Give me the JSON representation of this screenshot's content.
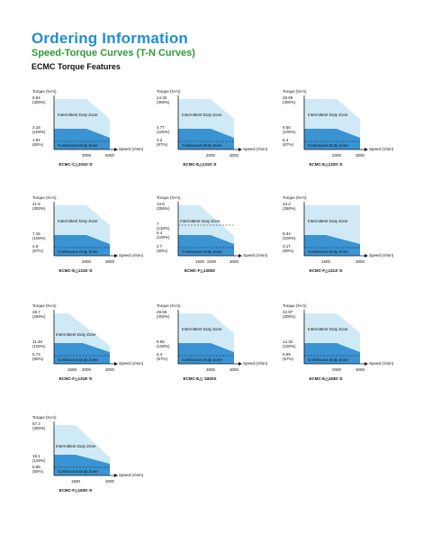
{
  "header": {
    "title": "Ordering Information",
    "subtitle": "Speed-Torque Curves (T-N Curves)",
    "section": "ECMC Torque Features"
  },
  "colors": {
    "title": "#1e8fd4",
    "subtitle": "#2f9a3a",
    "intermittent": "#cfeaf6",
    "continuous": "#3a93d3"
  },
  "charts": [
    {
      "model": "ECMC-C△1010□S",
      "ylabel": "Torque (N-m)",
      "xlabel": "Speed (r/min)",
      "zone_intermittent": "Intermittent Duty Zone",
      "zone_continuous": "Continuous Duty Zone",
      "y_ticks": [
        {
          "value": "9.54",
          "pct": "(300%)"
        },
        {
          "value": "3.18",
          "pct": "(100%)"
        },
        {
          "value": "1.91",
          "pct": "(60%)"
        }
      ],
      "x_ticks": [
        "3000",
        "5000"
      ]
    },
    {
      "model": "ECMC-E△1310□S",
      "ylabel": "Torque (N-m)",
      "xlabel": "Speed (r/min)",
      "zone_intermittent": "Intermittent Duty Zone",
      "zone_continuous": "Continuous Duty Zone",
      "y_ticks": [
        {
          "value": "14.32",
          "pct": "(300%)"
        },
        {
          "value": "4.77",
          "pct": "(100%)"
        },
        {
          "value": "3.2",
          "pct": "(67%)"
        }
      ],
      "x_ticks": [
        "2000",
        "3000"
      ]
    },
    {
      "model": "ECMC-E△1320□S",
      "ylabel": "Torque (N-m)",
      "xlabel": "Speed (r/min)",
      "zone_intermittent": "Intermittent Duty Zone",
      "zone_continuous": "Continuous Duty Zone",
      "y_ticks": [
        {
          "value": "28.65",
          "pct": "(300%)"
        },
        {
          "value": "9.55",
          "pct": "(100%)"
        },
        {
          "value": "6.4",
          "pct": "(67%)"
        }
      ],
      "x_ticks": [
        "2000",
        "3000"
      ]
    },
    {
      "model": "ECMC-E△1315□S",
      "ylabel": "Torque (N-m)",
      "xlabel": "Speed (r/min)",
      "zone_intermittent": "Intermittent Duty Zone",
      "zone_continuous": "Continuous Duty Zone",
      "y_ticks": [
        {
          "value": "21.5",
          "pct": "(300%)"
        },
        {
          "value": "7.16",
          "pct": "(100%)"
        },
        {
          "value": "4.8",
          "pct": "(67%)"
        }
      ],
      "x_ticks": [
        "2000",
        "3000"
      ]
    },
    {
      "model": "ECMC-F△1308S",
      "ylabel": "Torque (N-m)",
      "xlabel": "Speed (r/min)",
      "zone_intermittent": "Intermittent Duty Zone",
      "zone_continuous": "Continuous Duty Zone",
      "y_ticks": [
        {
          "value": "13.8",
          "pct": "(255%)"
        },
        {
          "value": "7",
          "pct": "(130%)"
        },
        {
          "value": "5.4",
          "pct": "(100%)"
        },
        {
          "value": "2.7",
          "pct": "(50%)"
        }
      ],
      "x_ticks": [
        "1500",
        "2200",
        "3000"
      ]
    },
    {
      "model": "ECMC-F△1313□S",
      "ylabel": "Torque (N-m)",
      "xlabel": "Speed (r/min)",
      "zone_intermittent": "Intermittent Duty Zone",
      "zone_continuous": "Continuous Duty Zone",
      "y_ticks": [
        {
          "value": "23.3",
          "pct": "(280%)"
        },
        {
          "value": "8.34",
          "pct": "(100%)"
        },
        {
          "value": "4.17",
          "pct": "(50%)"
        }
      ],
      "x_ticks": [
        "1500",
        "3000"
      ]
    },
    {
      "model": "ECMC-F△1318□S",
      "ylabel": "Torque (N-m)",
      "xlabel": "Speed (r/min)",
      "zone_intermittent": "Intermittent Duty Zone",
      "zone_continuous": "Continuous Duty Zone",
      "y_ticks": [
        {
          "value": "28.7",
          "pct": "(250%)"
        },
        {
          "value": "11.48",
          "pct": "(100%)"
        },
        {
          "value": "5.74",
          "pct": "(50%)"
        }
      ],
      "x_ticks": [
        "1500",
        "2000",
        "3000"
      ]
    },
    {
      "model": "ECMC-E△□1820S",
      "ylabel": "Torque (N-m)",
      "xlabel": "Speed (r/min)",
      "zone_intermittent": "Intermittent Duty Zone",
      "zone_continuous": "Continuous Duty Zone",
      "y_ticks": [
        {
          "value": "28.65",
          "pct": "(300%)"
        },
        {
          "value": "9.55",
          "pct": "(100%)"
        },
        {
          "value": "6.4",
          "pct": "(67%)"
        }
      ],
      "x_ticks": [
        "2000",
        "3000"
      ]
    },
    {
      "model": "ECMC-E△1830□S",
      "ylabel": "Torque (N-m)",
      "xlabel": "Speed (r/min)",
      "zone_intermittent": "Intermittent Duty Zone",
      "zone_continuous": "Continuous Duty Zone",
      "y_ticks": [
        {
          "value": "42.97",
          "pct": "(300%)"
        },
        {
          "value": "14.32",
          "pct": "(100%)"
        },
        {
          "value": "9.59",
          "pct": "(67%)"
        }
      ],
      "x_ticks": [
        "2000",
        "3000"
      ]
    },
    {
      "model": "ECMC-F△1830□S",
      "ylabel": "Torque (N-m)",
      "xlabel": "Speed (r/min)",
      "zone_intermittent": "Intermittent Duty Zone",
      "zone_continuous": "Continuous Duty Zone",
      "y_ticks": [
        {
          "value": "57.3",
          "pct": "(300%)"
        },
        {
          "value": "19.1",
          "pct": "(100%)"
        },
        {
          "value": "9.55",
          "pct": "(50%)"
        }
      ],
      "x_ticks": [
        "1500",
        "3000"
      ]
    }
  ]
}
